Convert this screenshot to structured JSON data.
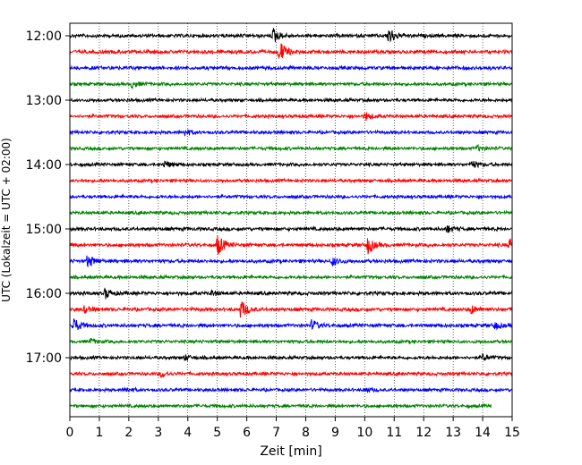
{
  "chart_data": {
    "type": "line",
    "title": "",
    "xlabel": "Zeit  [min]",
    "ylabel": "UTC (Lokalzeit = UTC + 02:00)",
    "xlim": [
      0,
      15
    ],
    "x_ticks": [
      "0",
      "1",
      "2",
      "3",
      "4",
      "5",
      "6",
      "7",
      "8",
      "9",
      "10",
      "11",
      "12",
      "13",
      "14",
      "15"
    ],
    "y_tick_labels": [
      "12:00",
      "13:00",
      "14:00",
      "15:00",
      "16:00",
      "17:00"
    ],
    "grid": "vertical dotted",
    "colors": [
      "#000000",
      "#ff0000",
      "#0000ff",
      "#008000"
    ],
    "traces": [
      {
        "start": "12:00",
        "end_min": 15,
        "color": "#000000",
        "amp": 2.2,
        "events": [
          [
            6.9,
            9
          ],
          [
            10.8,
            11
          ]
        ]
      },
      {
        "start": "12:15",
        "end_min": 15,
        "color": "#ff0000",
        "amp": 2.2,
        "events": [
          [
            7.1,
            14
          ]
        ]
      },
      {
        "start": "12:30",
        "end_min": 15,
        "color": "#0000ff",
        "amp": 2.2,
        "events": []
      },
      {
        "start": "12:45",
        "end_min": 15,
        "color": "#008000",
        "amp": 2.0,
        "events": [
          [
            2.1,
            4
          ]
        ]
      },
      {
        "start": "13:00",
        "end_min": 15,
        "color": "#000000",
        "amp": 2.0,
        "events": []
      },
      {
        "start": "13:15",
        "end_min": 15,
        "color": "#ff0000",
        "amp": 2.0,
        "events": [
          [
            10.0,
            5
          ]
        ]
      },
      {
        "start": "13:30",
        "end_min": 15,
        "color": "#0000ff",
        "amp": 2.0,
        "events": [
          [
            3.9,
            4
          ]
        ]
      },
      {
        "start": "13:45",
        "end_min": 15,
        "color": "#008000",
        "amp": 2.0,
        "events": [
          [
            13.8,
            3
          ]
        ]
      },
      {
        "start": "14:00",
        "end_min": 15,
        "color": "#000000",
        "amp": 2.0,
        "events": [
          [
            3.2,
            4
          ],
          [
            13.6,
            5
          ]
        ]
      },
      {
        "start": "14:15",
        "end_min": 15,
        "color": "#ff0000",
        "amp": 2.0,
        "events": []
      },
      {
        "start": "14:30",
        "end_min": 15,
        "color": "#0000ff",
        "amp": 2.0,
        "events": []
      },
      {
        "start": "14:45",
        "end_min": 15,
        "color": "#008000",
        "amp": 2.0,
        "events": []
      },
      {
        "start": "15:00",
        "end_min": 15,
        "color": "#000000",
        "amp": 2.2,
        "events": [
          [
            12.8,
            4
          ]
        ]
      },
      {
        "start": "15:15",
        "end_min": 15,
        "color": "#ff0000",
        "amp": 2.2,
        "events": [
          [
            5.0,
            13
          ],
          [
            10.1,
            10
          ],
          [
            14.9,
            8
          ]
        ]
      },
      {
        "start": "15:30",
        "end_min": 15,
        "color": "#0000ff",
        "amp": 2.2,
        "events": [
          [
            0.6,
            8
          ],
          [
            8.9,
            5
          ]
        ]
      },
      {
        "start": "15:45",
        "end_min": 15,
        "color": "#008000",
        "amp": 2.0,
        "events": []
      },
      {
        "start": "16:00",
        "end_min": 15,
        "color": "#000000",
        "amp": 2.2,
        "events": [
          [
            1.2,
            6
          ],
          [
            4.8,
            3
          ]
        ]
      },
      {
        "start": "16:15",
        "end_min": 15,
        "color": "#ff0000",
        "amp": 2.2,
        "events": [
          [
            0.5,
            4
          ],
          [
            5.8,
            11
          ],
          [
            13.6,
            5
          ]
        ]
      },
      {
        "start": "16:30",
        "end_min": 15,
        "color": "#0000ff",
        "amp": 2.2,
        "events": [
          [
            0.1,
            10
          ],
          [
            8.2,
            6
          ],
          [
            14.4,
            4
          ]
        ]
      },
      {
        "start": "16:45",
        "end_min": 15,
        "color": "#008000",
        "amp": 2.0,
        "events": [
          [
            0.7,
            3
          ]
        ]
      },
      {
        "start": "17:00",
        "end_min": 15,
        "color": "#000000",
        "amp": 2.0,
        "events": [
          [
            3.9,
            3
          ],
          [
            14.0,
            4
          ]
        ]
      },
      {
        "start": "17:15",
        "end_min": 15,
        "color": "#ff0000",
        "amp": 2.0,
        "events": [
          [
            3.1,
            4
          ]
        ]
      },
      {
        "start": "17:30",
        "end_min": 15,
        "color": "#0000ff",
        "amp": 2.0,
        "events": [
          [
            1.9,
            3
          ],
          [
            10.0,
            3
          ]
        ]
      },
      {
        "start": "17:45",
        "end_min": 14.3,
        "color": "#008000",
        "amp": 2.0,
        "events": []
      }
    ]
  }
}
